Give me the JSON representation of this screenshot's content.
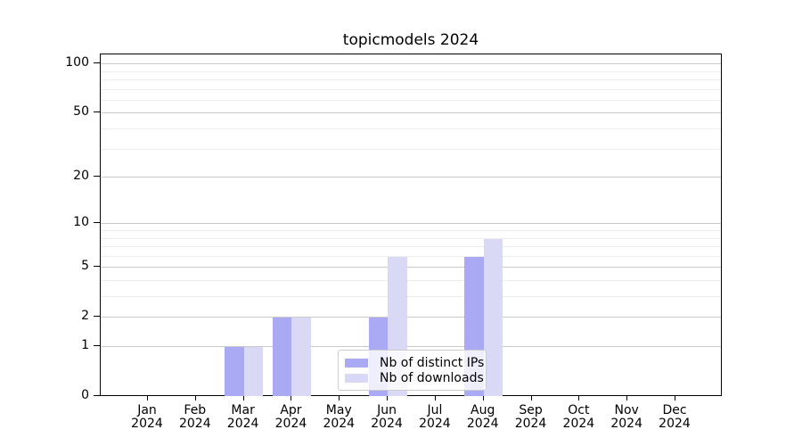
{
  "chart_data": {
    "type": "bar",
    "title": "topicmodels 2024",
    "categories": [
      "Jan",
      "Feb",
      "Mar",
      "Apr",
      "May",
      "Jun",
      "Jul",
      "Aug",
      "Sep",
      "Oct",
      "Nov",
      "Dec"
    ],
    "category_year": "2024",
    "series": [
      {
        "name": "Nb of distinct IPs",
        "color": "#aaaaf4",
        "values": [
          0,
          0,
          1,
          2,
          0,
          2,
          0,
          6,
          0,
          0,
          0,
          0
        ]
      },
      {
        "name": "Nb of downloads",
        "color": "#d9d9f6",
        "values": [
          0,
          0,
          1,
          2,
          0,
          6,
          0,
          8,
          0,
          0,
          0,
          0
        ]
      }
    ],
    "y_axis": {
      "scale": "log1p",
      "major_ticks": [
        0,
        1,
        2,
        5,
        10,
        20,
        50,
        100
      ],
      "minor_ticks": [
        3,
        4,
        6,
        7,
        8,
        9,
        30,
        40,
        60,
        70,
        80,
        90
      ],
      "ylim": [
        0,
        115
      ]
    },
    "xlabel": "",
    "ylabel": "",
    "grid": true,
    "legend_position": "inside-bottom-center",
    "colors": {
      "axis": "#000000",
      "major_grid": "#c9c9c9",
      "minor_grid": "#ededed",
      "background": "#ffffff"
    }
  }
}
